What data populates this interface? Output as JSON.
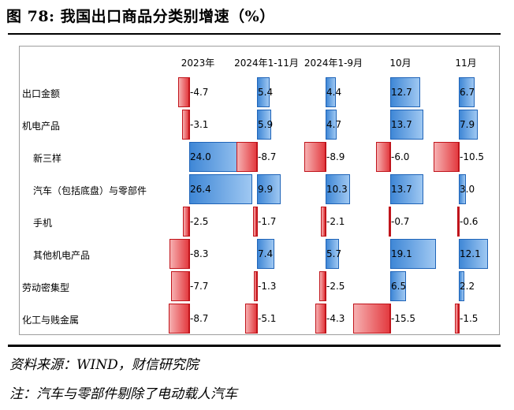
{
  "title": "图 78:  我国出口商品分类别增速（%）",
  "source": "资料来源：WIND，财信研究院",
  "note": "注：汽车与零部件剔除了电动载人汽车",
  "colors": {
    "positive": "#3f87d6",
    "negative": "#e33b40"
  },
  "chart_data": {
    "type": "table",
    "columns": [
      "2023年",
      "2024年1-11月",
      "2024年1-9月",
      "10月",
      "11月"
    ],
    "rows": [
      {
        "label": "出口金额",
        "indent": false,
        "values": [
          -4.7,
          5.4,
          4.4,
          12.7,
          6.7
        ],
        "display": [
          "-4.7",
          "5.4",
          "4.4",
          "12.7",
          "6.7"
        ]
      },
      {
        "label": "机电产品",
        "indent": false,
        "values": [
          -3.1,
          5.9,
          4.7,
          13.7,
          7.9
        ],
        "display": [
          "-3.1",
          "5.9",
          "4.7",
          "13.7",
          "7.9"
        ]
      },
      {
        "label": "新三样",
        "indent": true,
        "values": [
          24.0,
          -8.7,
          -8.9,
          -6.0,
          -10.5
        ],
        "display": [
          "24.0",
          "-8.7",
          "-8.9",
          "-6.0",
          "-10.5"
        ]
      },
      {
        "label": "汽车（包括底盘）与零部件",
        "indent": true,
        "values": [
          26.4,
          9.9,
          10.3,
          13.7,
          3.0
        ],
        "display": [
          "26.4",
          "9.9",
          "10.3",
          "13.7",
          "3.0"
        ]
      },
      {
        "label": "手机",
        "indent": true,
        "values": [
          -2.5,
          -1.7,
          -2.1,
          -0.7,
          -0.6
        ],
        "display": [
          "-2.5",
          "-1.7",
          "-2.1",
          "-0.7",
          "-0.6"
        ]
      },
      {
        "label": "其他机电产品",
        "indent": true,
        "values": [
          -8.3,
          7.4,
          5.7,
          19.1,
          12.1
        ],
        "display": [
          "-8.3",
          "7.4",
          "5.7",
          "19.1",
          "12.1"
        ]
      },
      {
        "label": "劳动密集型",
        "indent": false,
        "values": [
          -7.7,
          -1.3,
          -2.5,
          6.5,
          2.2
        ],
        "display": [
          "-7.7",
          "-1.3",
          "-2.5",
          "6.5",
          "2.2"
        ]
      },
      {
        "label": "化工与贱金属",
        "indent": false,
        "values": [
          -8.7,
          -5.1,
          -4.3,
          -15.5,
          -1.5
        ],
        "display": [
          "-8.7",
          "-5.1",
          "-4.3",
          "-15.5",
          "-1.5"
        ]
      }
    ]
  }
}
